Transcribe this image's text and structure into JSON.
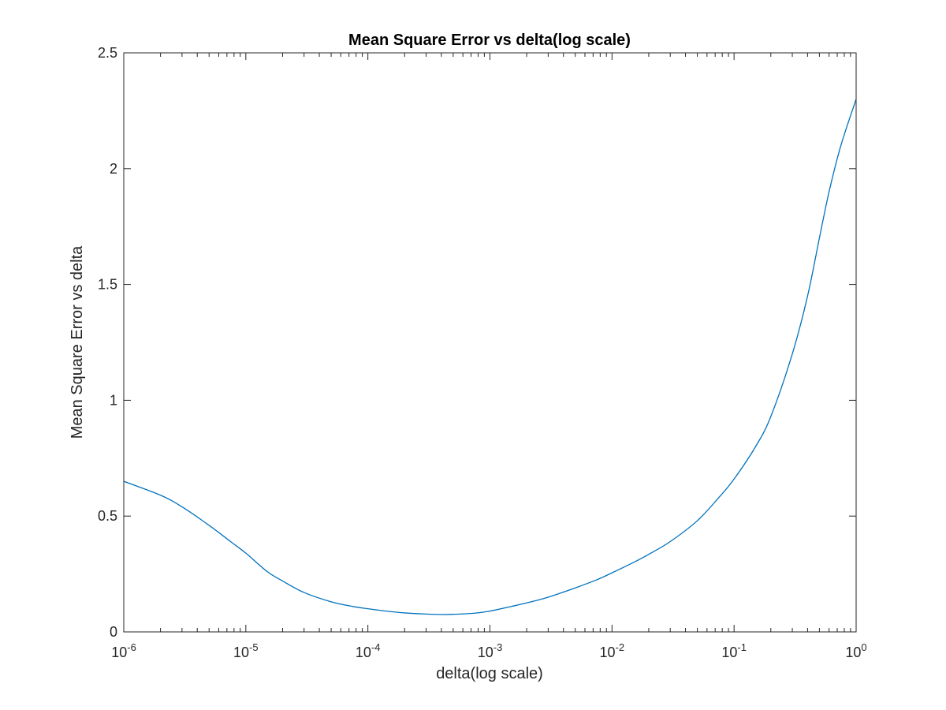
{
  "chart_data": {
    "type": "line",
    "title": "Mean Square Error vs delta(log scale)",
    "xlabel": "delta(log scale)",
    "ylabel": "Mean Square Error vs delta",
    "xscale": "log",
    "xlim": [
      1e-06,
      1
    ],
    "ylim": [
      0,
      2.5
    ],
    "grid": false,
    "x_ticks": [
      {
        "base": "10",
        "exp": "-6",
        "value": 1e-06
      },
      {
        "base": "10",
        "exp": "-5",
        "value": 1e-05
      },
      {
        "base": "10",
        "exp": "-4",
        "value": 0.0001
      },
      {
        "base": "10",
        "exp": "-3",
        "value": 0.001
      },
      {
        "base": "10",
        "exp": "-2",
        "value": 0.01
      },
      {
        "base": "10",
        "exp": "-1",
        "value": 0.1
      },
      {
        "base": "10",
        "exp": "0",
        "value": 1
      }
    ],
    "y_ticks": [
      {
        "label": "0",
        "value": 0
      },
      {
        "label": "0.5",
        "value": 0.5
      },
      {
        "label": "1",
        "value": 1
      },
      {
        "label": "1.5",
        "value": 1.5
      },
      {
        "label": "2",
        "value": 2
      },
      {
        "label": "2.5",
        "value": 2.5
      }
    ],
    "series": [
      {
        "color": "#0072BD",
        "x": [
          1e-06,
          2e-06,
          3e-06,
          5e-06,
          7.5e-06,
          1e-05,
          1.5e-05,
          2e-05,
          3e-05,
          5e-05,
          7.5e-05,
          0.0001,
          0.00015,
          0.0002,
          0.0003,
          0.0004,
          0.0005,
          0.00075,
          0.001,
          0.0015,
          0.002,
          0.003,
          0.005,
          0.0075,
          0.01,
          0.015,
          0.02,
          0.03,
          0.05,
          0.075,
          0.1,
          0.15,
          0.2,
          0.3,
          0.4,
          0.5,
          0.6,
          0.75,
          1
        ],
        "y": [
          0.65,
          0.59,
          0.54,
          0.46,
          0.39,
          0.34,
          0.26,
          0.22,
          0.17,
          0.13,
          0.11,
          0.1,
          0.088,
          0.082,
          0.077,
          0.075,
          0.076,
          0.081,
          0.09,
          0.11,
          0.125,
          0.15,
          0.19,
          0.225,
          0.255,
          0.3,
          0.335,
          0.39,
          0.48,
          0.58,
          0.66,
          0.8,
          0.93,
          1.2,
          1.45,
          1.7,
          1.9,
          2.1,
          2.3
        ]
      }
    ]
  }
}
